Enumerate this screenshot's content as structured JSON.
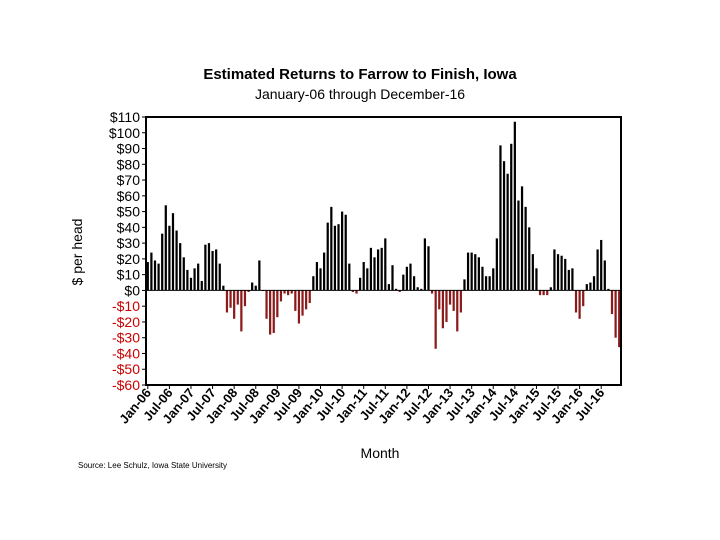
{
  "chart_data": {
    "type": "bar",
    "title": "Estimated Returns to Farrow to Finish, Iowa",
    "subtitle": "January-06 through December-16",
    "xlabel": "Month",
    "ylabel": "$ per head",
    "ylim": [
      -60,
      110
    ],
    "y_ticks": [
      110,
      100,
      90,
      80,
      70,
      60,
      50,
      40,
      30,
      20,
      10,
      0,
      -10,
      -20,
      -30,
      -40,
      -50,
      -60
    ],
    "y_tick_labels": [
      "$110",
      "$100",
      "$90",
      "$80",
      "$70",
      "$60",
      "$50",
      "$40",
      "$30",
      "$20",
      "$10",
      "$0",
      "-$10",
      "-$20",
      "-$30",
      "-$40",
      "-$50",
      "-$60"
    ],
    "x_tick_labels": [
      "Jan-06",
      "Jul-06",
      "Jan-07",
      "Jul-07",
      "Jan-08",
      "Jul-08",
      "Jan-09",
      "Jul-09",
      "Jan-10",
      "Jul-10",
      "Jan-11",
      "Jul-11",
      "Jan-12",
      "Jul-12",
      "Jan-13",
      "Jul-13",
      "Jan-14",
      "Jul-14",
      "Jan-15",
      "Jul-15",
      "Jan-16",
      "Jul-16"
    ],
    "x_tick_every": 6,
    "colors": {
      "positive": "#000000",
      "negative": "#8b1a1a",
      "negative_tick_label": "#cc0000"
    },
    "values": [
      18,
      24,
      19,
      17,
      36,
      54,
      41,
      49,
      38,
      30,
      21,
      13,
      8,
      14,
      17,
      6,
      29,
      30,
      25,
      26,
      17,
      3,
      -14,
      -11,
      -18,
      -9,
      -26,
      -10,
      -1,
      5,
      3,
      19,
      0,
      -18,
      -28,
      -27,
      -17,
      -7,
      -2,
      -3,
      -2,
      -13,
      -21,
      -16,
      -12,
      -8,
      9,
      18,
      14,
      24,
      43,
      53,
      41,
      42,
      50,
      48,
      17,
      -1,
      -2,
      8,
      18,
      14,
      27,
      21,
      26,
      27,
      33,
      4,
      16,
      1,
      -1,
      10,
      15,
      17,
      9,
      2,
      1,
      33,
      28,
      -2,
      -37,
      -12,
      -24,
      -20,
      -9,
      -13,
      -26,
      -14,
      7,
      24,
      24,
      23,
      21,
      15,
      9,
      9,
      14,
      33,
      92,
      82,
      74,
      93,
      107,
      57,
      66,
      53,
      40,
      23,
      14,
      -3,
      -3,
      -3,
      2,
      26,
      23,
      22,
      20,
      13,
      14,
      -14,
      -18,
      -10,
      4,
      5,
      9,
      26,
      32,
      19,
      1,
      -15,
      -30,
      -36
    ]
  },
  "source_note": "Source: Lee Schulz, Iowa State University"
}
